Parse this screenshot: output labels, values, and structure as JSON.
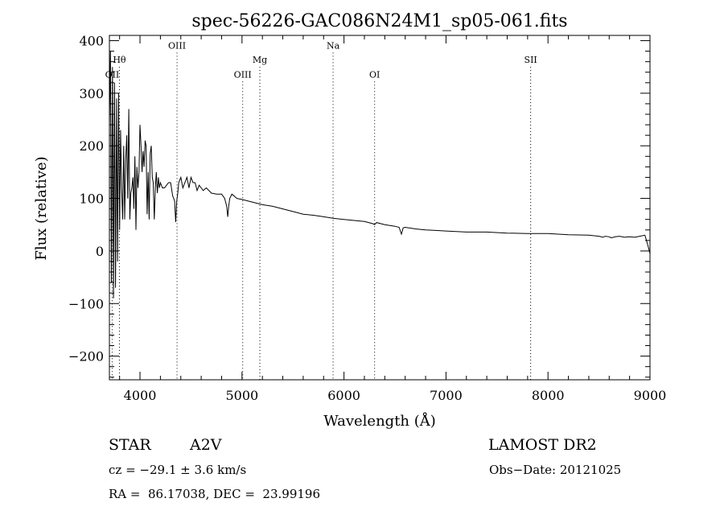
{
  "chart_data": {
    "type": "line",
    "title": "spec-56226-GAC086N24M1_sp05-061.fits",
    "xlabel": "Wavelength (Å)",
    "ylabel": "Flux (relative)",
    "xlim": [
      3700,
      9000
    ],
    "ylim": [
      -245,
      410
    ],
    "x_ticks": [
      4000,
      5000,
      6000,
      7000,
      8000,
      9000
    ],
    "x_tick_labels": [
      "4000",
      "5000",
      "6000",
      "7000",
      "8000",
      "9000"
    ],
    "y_ticks": [
      -200,
      -100,
      0,
      100,
      200,
      300,
      400
    ],
    "y_tick_labels": [
      "−200",
      "−100",
      "0",
      "100",
      "200",
      "300",
      "400"
    ],
    "grid": false,
    "line_color": "#000000",
    "line_markers": [
      {
        "label": "OII",
        "x": 3727,
        "label_y": 330
      },
      {
        "label": "Hθ",
        "x": 3798,
        "label_y": 358
      },
      {
        "label": "OIII",
        "x": 4363,
        "label_y": 385
      },
      {
        "label": "OIII",
        "x": 5007,
        "label_y": 330
      },
      {
        "label": "Mg",
        "x": 5175,
        "label_y": 358
      },
      {
        "label": "Na",
        "x": 5893,
        "label_y": 385
      },
      {
        "label": "OI",
        "x": 6300,
        "label_y": 330
      },
      {
        "label": "SII",
        "x": 7830,
        "label_y": 358
      }
    ],
    "marker_line_color": "#000000",
    "series": [
      {
        "x": [
          3700,
          3710,
          3720,
          3730,
          3740,
          3750,
          3760,
          3770,
          3780,
          3790,
          3800,
          3810,
          3820,
          3830,
          3840,
          3850,
          3860,
          3870,
          3880,
          3890,
          3900,
          3910,
          3920,
          3930,
          3940,
          3950,
          3960,
          3970,
          3980,
          3990,
          4000,
          4010,
          4020,
          4030,
          4040,
          4050,
          4060,
          4070,
          4080,
          4090,
          4100,
          4110,
          4120,
          4130,
          4140,
          4150,
          4160,
          4170,
          4180,
          4190,
          4200,
          4220,
          4240,
          4260,
          4280,
          4300,
          4320,
          4340,
          4350,
          4360,
          4370,
          4380,
          4400,
          4420,
          4440,
          4460,
          4480,
          4500,
          4520,
          4540,
          4560,
          4580,
          4600,
          4620,
          4650,
          4700,
          4750,
          4800,
          4830,
          4850,
          4860,
          4870,
          4880,
          4900,
          4920,
          4950,
          5000,
          5100,
          5200,
          5300,
          5400,
          5500,
          5600,
          5700,
          5800,
          5900,
          6000,
          6100,
          6200,
          6280,
          6300,
          6320,
          6400,
          6500,
          6540,
          6563,
          6580,
          6600,
          6700,
          6800,
          6900,
          7000,
          7200,
          7400,
          7600,
          7800,
          8000,
          8200,
          8400,
          8500,
          8540,
          8560,
          8600,
          8620,
          8660,
          8700,
          8750,
          8800,
          8850,
          8900,
          8950,
          8980,
          9000
        ],
        "y": [
          240,
          380,
          -60,
          350,
          -90,
          320,
          -70,
          290,
          -20,
          300,
          40,
          230,
          120,
          60,
          200,
          60,
          175,
          220,
          100,
          270,
          60,
          110,
          120,
          140,
          80,
          180,
          40,
          160,
          120,
          150,
          240,
          200,
          150,
          190,
          160,
          210,
          200,
          70,
          150,
          60,
          185,
          200,
          140,
          130,
          60,
          120,
          150,
          110,
          140,
          120,
          130,
          120,
          120,
          125,
          130,
          130,
          105,
          95,
          55,
          95,
          110,
          130,
          140,
          120,
          130,
          140,
          120,
          140,
          130,
          130,
          115,
          125,
          120,
          115,
          120,
          110,
          108,
          108,
          100,
          85,
          65,
          85,
          100,
          108,
          105,
          100,
          98,
          93,
          88,
          85,
          80,
          75,
          70,
          68,
          65,
          62,
          60,
          58,
          56,
          52,
          50,
          54,
          50,
          47,
          45,
          32,
          44,
          45,
          42,
          40,
          39,
          38,
          36,
          36,
          34,
          33,
          33,
          31,
          30,
          28,
          26,
          28,
          27,
          25,
          27,
          28,
          26,
          27,
          26,
          28,
          30,
          10,
          -5
        ]
      }
    ]
  },
  "info": {
    "object_type": "STAR",
    "spectral_class": "A2V",
    "survey": "LAMOST DR2",
    "redshift": "cz = −29.1 ± 3.6 km/s",
    "obs_date": "Obs−Date: 20121025",
    "coords": "RA =  86.17038, DEC =  23.99196"
  }
}
